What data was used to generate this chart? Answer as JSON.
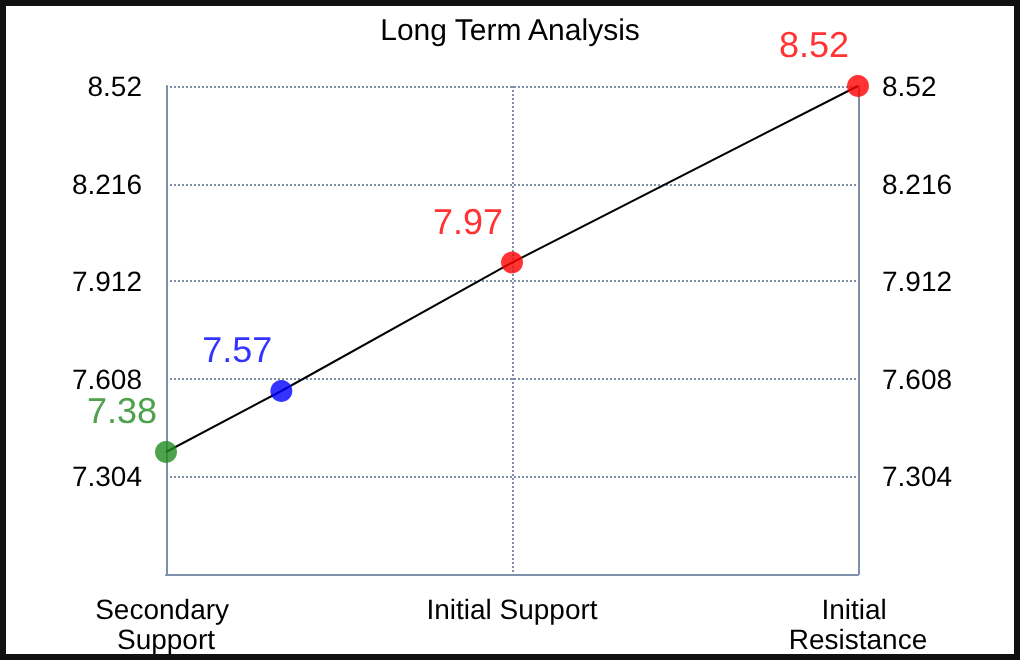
{
  "chart_data": {
    "type": "scatter",
    "title": "Long Term Analysis",
    "categories": [
      "Secondary Support",
      null,
      null,
      "Initial Support",
      null,
      null,
      "Initial Resistance"
    ],
    "ylim": [
      7.0,
      8.52
    ],
    "yticks": [
      7.304,
      7.608,
      7.912,
      8.216,
      8.52
    ],
    "y2lim": [
      7.0,
      8.52
    ],
    "y2ticks": [
      7.304,
      7.608,
      7.912,
      8.216,
      8.52
    ],
    "grid": true,
    "series": [
      {
        "type": "line",
        "color": "#000000",
        "marker": "none",
        "values": [
          7.38,
          7.57,
          null,
          7.97,
          null,
          null,
          8.52
        ]
      },
      {
        "marker": "circle",
        "colors": [
          "#228b22",
          "#0000ff",
          null,
          "#ff0000",
          null,
          null,
          "#ff0000"
        ],
        "values": [
          7.38,
          7.57,
          null,
          7.97,
          null,
          null,
          8.52
        ],
        "value_labels": [
          "7.38",
          "7.57",
          null,
          "7.97",
          null,
          null,
          "8.52"
        ]
      }
    ]
  }
}
